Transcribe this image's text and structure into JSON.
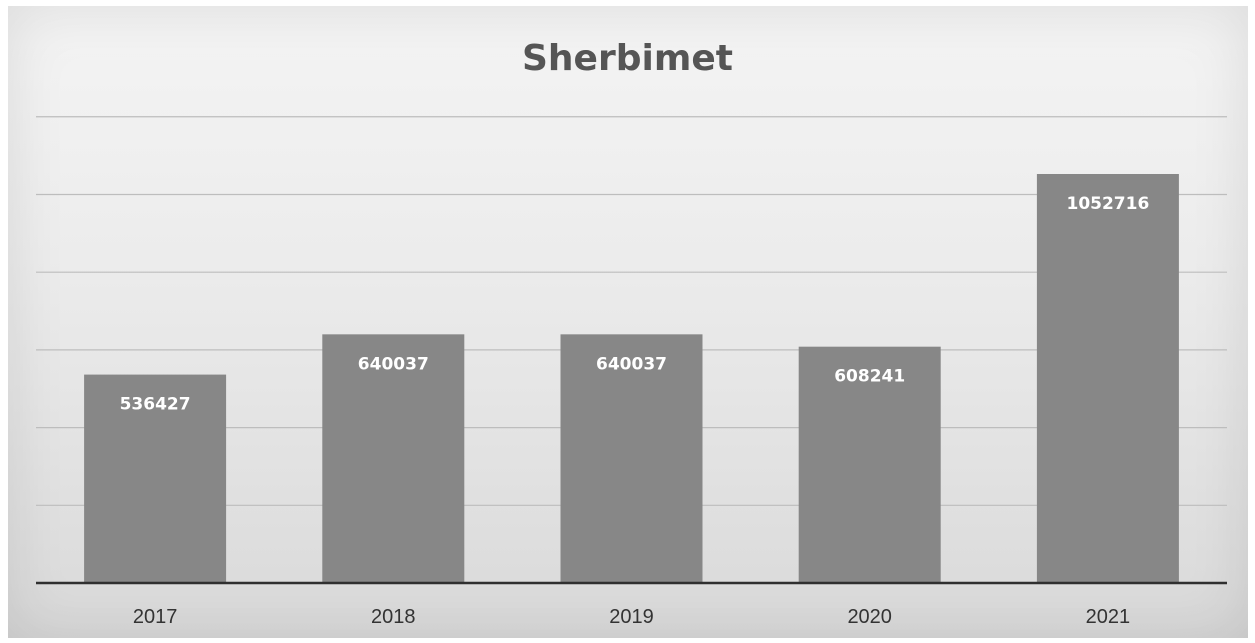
{
  "chart_data": {
    "type": "bar",
    "title": "Sherbimet",
    "categories": [
      "2017",
      "2018",
      "2019",
      "2020",
      "2021"
    ],
    "values": [
      536427,
      640037,
      640037,
      608241,
      1052716
    ],
    "data_labels": [
      "536427",
      "640037",
      "640037",
      "608241",
      "1052716"
    ],
    "xlabel": "",
    "ylabel": "",
    "ylim": [
      0,
      1200000
    ],
    "grid": true,
    "y_tick_labels_shown": false,
    "legend": "none",
    "colors": {
      "bar": "#878787",
      "label": "#ffffff",
      "title": "#555555",
      "axis": "#2f2f2f",
      "grid": "#bdbdbd"
    }
  }
}
